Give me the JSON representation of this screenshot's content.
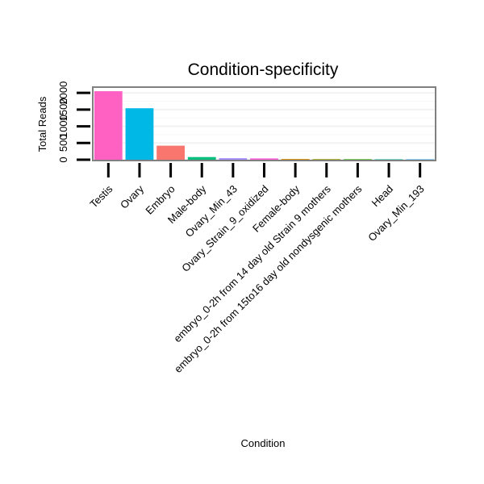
{
  "chart_data": {
    "type": "bar",
    "title": "Condition-specificity",
    "xlabel": "Condition",
    "ylabel": "Total Reads",
    "ylim": [
      0,
      2100
    ],
    "y_ticks": [
      0,
      500,
      1000,
      1500,
      2000
    ],
    "y_tick_labels": [
      "0",
      "500",
      "1000",
      "1500",
      "2000"
    ],
    "grid": true,
    "legend": "none",
    "categories": [
      "Testis",
      "Ovary",
      "Embryo",
      "Male-body",
      "Ovary_Min_43",
      "Ovary_Strain_9_oxidized",
      "Female-body",
      "embryo_0-2h from 14 day old Strain 9 mothers",
      "embryo_0-2h from 15to16 day old nondysgenic mothers",
      "Head",
      "Ovary_Min_193"
    ],
    "values": [
      2050,
      1540,
      420,
      80,
      45,
      40,
      22,
      18,
      15,
      12,
      10
    ],
    "colors": [
      "#FF61C3",
      "#00B8E5",
      "#F8766D",
      "#00BF7D",
      "#A58AFF",
      "#FB61D7",
      "#D89000",
      "#A3A500",
      "#39B600",
      "#00C0AF",
      "#00A9FF"
    ]
  }
}
